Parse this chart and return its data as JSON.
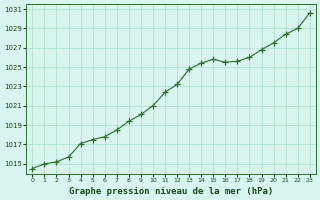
{
  "title": "Graphe pression niveau de la mer (hPa)",
  "x_values": [
    0,
    1,
    2,
    3,
    4,
    5,
    6,
    7,
    8,
    9,
    10,
    11,
    12,
    13,
    14,
    15,
    16,
    17,
    18,
    19,
    20,
    21,
    22,
    23
  ],
  "y_values": [
    1014.5,
    1015.0,
    1015.2,
    1015.7,
    1017.1,
    1017.5,
    1017.8,
    1018.5,
    1019.4,
    1020.1,
    1021.0,
    1022.4,
    1023.2,
    1024.8,
    1025.4,
    1025.8,
    1025.5,
    1025.6,
    1026.0,
    1026.8,
    1027.5,
    1028.4,
    1029.0,
    1030.6
  ],
  "ylim": [
    1014.0,
    1031.5
  ],
  "yticks": [
    1015,
    1017,
    1019,
    1021,
    1023,
    1025,
    1027,
    1029,
    1031
  ],
  "xlim": [
    -0.5,
    23.5
  ],
  "xticks": [
    0,
    1,
    2,
    3,
    4,
    5,
    6,
    7,
    8,
    9,
    10,
    11,
    12,
    13,
    14,
    15,
    16,
    17,
    18,
    19,
    20,
    21,
    22,
    23
  ],
  "xtick_labels": [
    "0",
    "1",
    "2",
    "3",
    "4",
    "5",
    "6",
    "7",
    "8",
    "9",
    "10",
    "11",
    "12",
    "13",
    "14",
    "15",
    "16",
    "17",
    "18",
    "19",
    "20",
    "21",
    "22",
    "23"
  ],
  "line_color": "#2d6e2d",
  "marker": "+",
  "bg_color": "#d8f5f0",
  "grid_color": "#aaddcc",
  "title_color": "#1a4a1a",
  "tick_color": "#1a4a1a",
  "axis_color": "#2d6e2d"
}
